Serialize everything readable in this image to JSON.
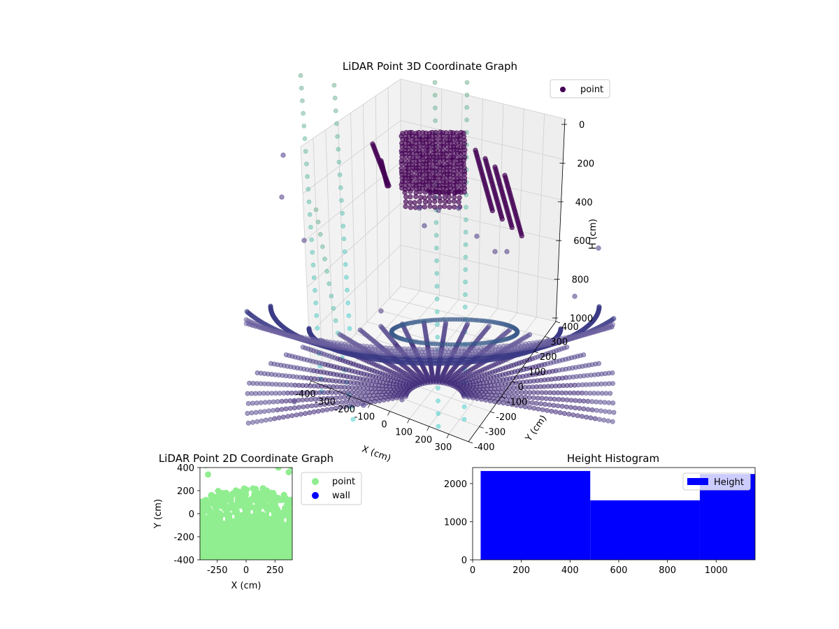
{
  "chart_data": [
    {
      "type": "scatter3d",
      "title": "LiDAR Point 3D Coordinate Graph",
      "xlabel": "X (cm)",
      "ylabel": "Y (cm)",
      "zlabel": "H (cm)",
      "xticks": [
        "-400",
        "-300",
        "-200",
        "-100",
        "0",
        "100",
        "200",
        "300"
      ],
      "yticks": [
        "-400",
        "-300",
        "-200",
        "-100",
        "0",
        "100",
        "200",
        "300",
        "400"
      ],
      "zticks": [
        "0",
        "200",
        "400",
        "600",
        "800",
        "1000"
      ],
      "xlim": [
        -400,
        400
      ],
      "ylim": [
        -400,
        400
      ],
      "zlim": [
        0,
        1000
      ],
      "z_inverted": true,
      "grid": true,
      "legend": {
        "position": "top-right",
        "entries": [
          {
            "label": "point",
            "color": "#440154"
          }
        ]
      },
      "colors": {
        "points_main": "#440154",
        "points_mid": "#3b528b",
        "points_edge": "#8fd7a0"
      }
    },
    {
      "type": "scatter",
      "title": "LiDAR Point 2D Coordinate Graph",
      "xlabel": "X (cm)",
      "ylabel": "Y (cm)",
      "xticks": [
        "-250",
        "0",
        "250"
      ],
      "xtick_values": [
        -250,
        0,
        250
      ],
      "yticks": [
        "400",
        "200",
        "0",
        "-200",
        "-400"
      ],
      "ytick_values": [
        400,
        200,
        0,
        -200,
        -400
      ],
      "xlim": [
        -400,
        400
      ],
      "ylim": [
        -400,
        400
      ],
      "legend": {
        "position": "outside-right",
        "entries": [
          {
            "label": "point",
            "color": "#90ee90"
          },
          {
            "label": "wall",
            "color": "#0000ff"
          }
        ]
      },
      "colors": {
        "point": "#90ee90",
        "wall": "#0000ff"
      }
    },
    {
      "type": "bar",
      "title": "Height Histogram",
      "bins": [
        {
          "x_start": 33,
          "x_end": 483,
          "value": 2330
        },
        {
          "x_start": 483,
          "x_end": 933,
          "value": 1560
        },
        {
          "x_start": 933,
          "x_end": 1160,
          "value": 2250
        }
      ],
      "xticks": [
        "0",
        "200",
        "400",
        "600",
        "800",
        "1000"
      ],
      "xtick_values": [
        0,
        200,
        400,
        600,
        800,
        1000
      ],
      "yticks": [
        "0",
        "1000",
        "2000"
      ],
      "ytick_values": [
        0,
        1000,
        2000
      ],
      "xlim": [
        0,
        1160
      ],
      "ylim": [
        0,
        2420
      ],
      "legend": {
        "position": "top-right",
        "entries": [
          {
            "label": "Height",
            "color": "#0000ff"
          }
        ]
      },
      "colors": {
        "bar": "#0000ff"
      }
    }
  ]
}
